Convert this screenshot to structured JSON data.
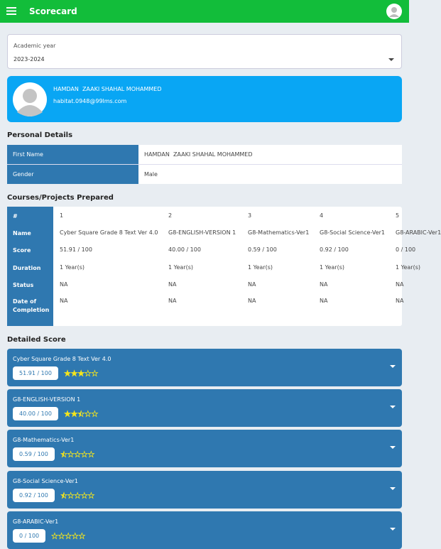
{
  "header": {
    "title": "Scorecard"
  },
  "academic_year": {
    "label": "Academic year",
    "value": "2023-2024"
  },
  "profile": {
    "name": "HAMDAN  ZAAKI SHAHAL MOHAMMED",
    "email": "habitat.0948@99lms.com"
  },
  "personal_details": {
    "title": "Personal Details",
    "rows": [
      [
        "First Name",
        "HAMDAN  ZAAKI SHAHAL MOHAMMED"
      ],
      [
        "Gender",
        "Male"
      ]
    ]
  },
  "courses": {
    "title": "Courses/Projects Prepared",
    "headers": [
      "#",
      "Name",
      "Score",
      "Duration",
      "Status",
      "Date of Completion"
    ],
    "columns": [
      [
        "1",
        "Cyber Square Grade 8 Text Ver 4.0",
        "51.91 / 100",
        "1 Year(s)",
        "NA",
        "NA"
      ],
      [
        "2",
        "G8-ENGLISH-VERSION 1",
        "40.00 / 100",
        "1 Year(s)",
        "NA",
        "NA"
      ],
      [
        "3",
        "G8-Mathematics-Ver1",
        "0.59 / 100",
        "1 Year(s)",
        "NA",
        "NA"
      ],
      [
        "4",
        "G8-Social Science-Ver1",
        "0.92 / 100",
        "1 Year(s)",
        "NA",
        "NA"
      ],
      [
        "5",
        "G8-ARABIC-Ver1",
        "0 / 100",
        "1 Year(s)",
        "NA",
        "NA"
      ]
    ]
  },
  "detailed_score": {
    "title": "Detailed Score",
    "items": [
      {
        "name": "Cyber Square Grade 8 Text Ver 4.0",
        "score": "51.91 / 100",
        "rating": 3
      },
      {
        "name": "G8-ENGLISH-VERSION 1",
        "score": "40.00 / 100",
        "rating": 2.5
      },
      {
        "name": "G8-Mathematics-Ver1",
        "score": "0.59 / 100",
        "rating": 0.5
      },
      {
        "name": "G8-Social Science-Ver1",
        "score": "0.92 / 100",
        "rating": 0.5
      },
      {
        "name": "G8-ARABIC-Ver1",
        "score": "0 / 100",
        "rating": 0
      }
    ]
  }
}
